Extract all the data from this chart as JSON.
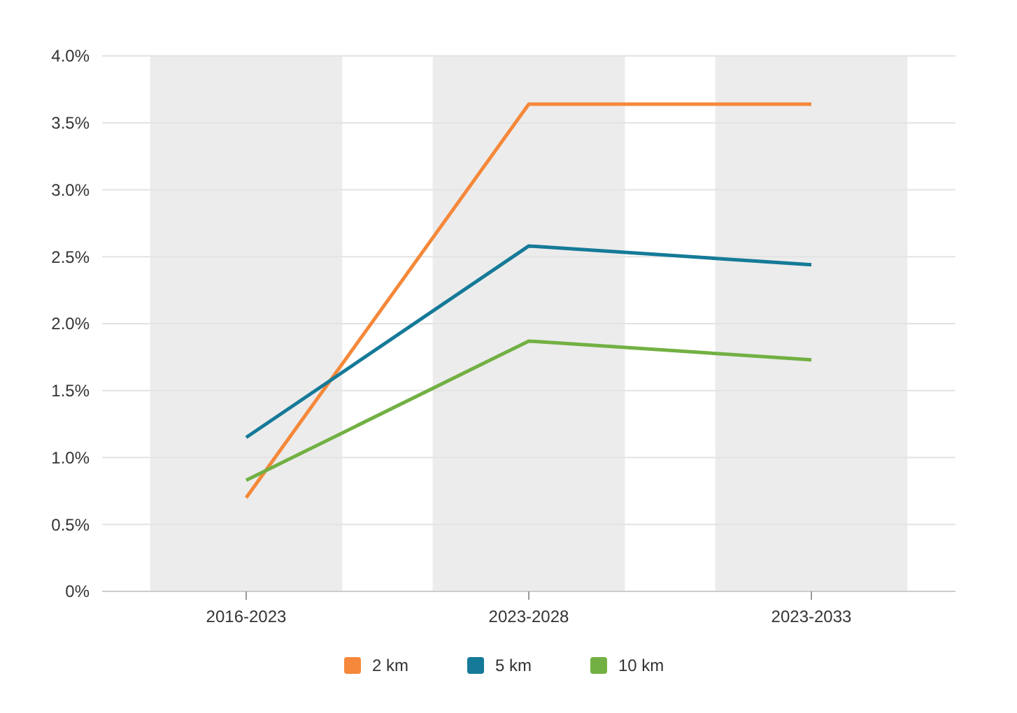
{
  "chart_data": {
    "type": "line",
    "categories": [
      "2016-2023",
      "2023-2028",
      "2023-2033"
    ],
    "series": [
      {
        "name": "2 km",
        "color": "#f5883a",
        "values": [
          0.7,
          3.64,
          3.64
        ]
      },
      {
        "name": "5 km",
        "color": "#157a98",
        "values": [
          1.15,
          2.58,
          2.44
        ]
      },
      {
        "name": "10 km",
        "color": "#72b043",
        "values": [
          0.83,
          1.87,
          1.73
        ]
      }
    ],
    "ylim": [
      0,
      4
    ],
    "yticks": [
      {
        "value": 0,
        "label": "0%"
      },
      {
        "value": 0.5,
        "label": "0.5%"
      },
      {
        "value": 1,
        "label": "1.0%"
      },
      {
        "value": 1.5,
        "label": "1.5%"
      },
      {
        "value": 2,
        "label": "2.0%"
      },
      {
        "value": 2.5,
        "label": "2.5%"
      },
      {
        "value": 3,
        "label": "3.0%"
      },
      {
        "value": 3.5,
        "label": "3.5%"
      },
      {
        "value": 4,
        "label": "4.0%"
      }
    ],
    "bands": [
      {
        "axis": "x",
        "from": "2016-2023",
        "to": "2016-2023",
        "color": "#ececec"
      },
      {
        "axis": "x",
        "from": "2023-2028",
        "to": "2023-2028",
        "color": "#ececec"
      },
      {
        "axis": "x",
        "from": "2023-2033",
        "to": "2023-2033",
        "color": "#ececec"
      }
    ],
    "grid": "y",
    "legend": "bottom",
    "marker": "none",
    "line_style": "solid"
  }
}
